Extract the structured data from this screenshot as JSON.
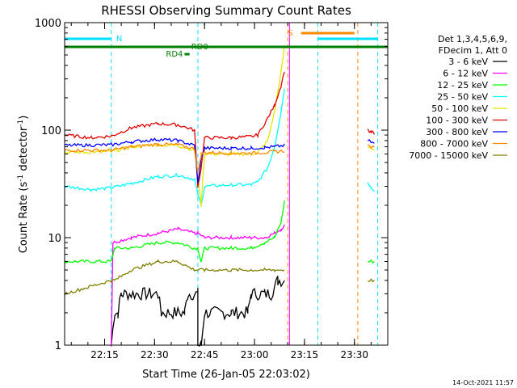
{
  "colors": {
    "background": "#ffffff",
    "axis": "#000000",
    "series": [
      "#000000",
      "#ff00ff",
      "#00ff00",
      "#00ffff",
      "#e6e600",
      "#e00000",
      "#0000ff",
      "#ff8800",
      "#808000"
    ],
    "ticks": {
      "night": "#00e0ff",
      "saa": "#ff8800"
    },
    "bars": {
      "night": "#00e0ff",
      "flag_rd": "#008000",
      "saa": "#ff8800"
    }
  },
  "chart_data": {
    "type": "line",
    "title": "RHESSI Observing Summary Count Rates",
    "xlabel": "Start Time (26-Jan-05 22:03:02)",
    "ylabel": "Count Rate (s",
    "ylabel_sup": "-1",
    "ylabel_tail": " detector",
    "ylabel_close": ")",
    "ylog": true,
    "ylim": [
      1,
      1000
    ],
    "xlim_minutes": [
      0,
      97
    ],
    "x_start": "22:03:02",
    "xticks": [
      {
        "label": "22:15",
        "min": 12
      },
      {
        "label": "22:30",
        "min": 27
      },
      {
        "label": "22:45",
        "min": 42
      },
      {
        "label": "23:00",
        "min": 57
      },
      {
        "label": "23:15",
        "min": 72
      },
      {
        "label": "23:30",
        "min": 87
      }
    ],
    "yticks": [
      {
        "label": "1",
        "value": 1
      },
      {
        "label": "10",
        "value": 10
      },
      {
        "label": "100",
        "value": 100
      },
      {
        "label": "1000",
        "value": 1000
      }
    ],
    "legend": {
      "position": "right",
      "header": [
        "Det 1,3,4,5,6,9,",
        "FDecim 1, Att 0"
      ],
      "entries": [
        "3 - 6 keV",
        "6 - 12 keV",
        "12 - 25 keV",
        "25 - 50 keV",
        "50 - 100 keV",
        "100 - 300 keV",
        "300 - 800 keV",
        "800 - 7000 keV",
        "7000 - 15000 keV"
      ]
    },
    "flags": {
      "night_label": "N",
      "saa_label": "S",
      "rd0_label": "RD0",
      "rd4_label": "RD4",
      "night_intervals": [
        [
          -1,
          14
        ],
        [
          76,
          94
        ]
      ],
      "saa_intervals": [
        [
          71,
          87
        ]
      ],
      "night_lines": [
        0,
        14,
        40,
        76,
        94
      ],
      "saa_lines": [
        67,
        88
      ],
      "att_lines": [
        67.5
      ]
    },
    "gaps": [
      [
        67,
        91
      ]
    ],
    "series": [
      {
        "name": "3 - 6 keV",
        "segments": [
          [
            [
              14,
              1
            ],
            [
              15,
              2
            ],
            [
              16,
              2
            ],
            [
              17,
              3
            ],
            [
              28,
              3
            ],
            [
              29,
              2
            ],
            [
              36,
              2
            ],
            [
              37,
              3
            ],
            [
              40,
              3
            ],
            [
              40,
              1
            ],
            [
              41,
              1
            ],
            [
              42,
              2
            ],
            [
              50,
              2
            ],
            [
              55,
              2
            ],
            [
              56,
              3
            ],
            [
              60,
              3
            ],
            [
              62,
              3
            ],
            [
              64,
              4
            ],
            [
              66,
              4
            ]
          ]
        ]
      },
      {
        "name": "6 - 12 keV",
        "segments": [
          [
            [
              14,
              1
            ],
            [
              14.5,
              9
            ],
            [
              20,
              10
            ],
            [
              28,
              11
            ],
            [
              34,
              12
            ],
            [
              39,
              11
            ],
            [
              40,
              11
            ],
            [
              42,
              10
            ],
            [
              50,
              10
            ],
            [
              56,
              10
            ],
            [
              60,
              10
            ],
            [
              63,
              11
            ],
            [
              65,
              12
            ],
            [
              66,
              13
            ]
          ]
        ]
      },
      {
        "name": "12 - 25 keV",
        "segments": [
          [
            [
              0,
              6
            ],
            [
              14,
              6
            ],
            [
              15,
              8
            ],
            [
              20,
              8
            ],
            [
              28,
              9
            ],
            [
              34,
              9
            ],
            [
              39,
              8
            ],
            [
              40,
              8
            ],
            [
              41,
              6
            ],
            [
              42,
              8
            ],
            [
              50,
              8
            ],
            [
              56,
              8
            ],
            [
              60,
              9
            ],
            [
              63,
              10
            ],
            [
              65,
              14
            ],
            [
              66,
              22
            ]
          ],
          [
            [
              91,
              6
            ],
            [
              93,
              6
            ]
          ]
        ]
      },
      {
        "name": "25 - 50 keV",
        "segments": [
          [
            [
              0,
              30
            ],
            [
              8,
              28
            ],
            [
              14,
              29
            ],
            [
              20,
              32
            ],
            [
              28,
              37
            ],
            [
              34,
              38
            ],
            [
              39,
              35
            ],
            [
              40,
              25
            ],
            [
              41,
              20
            ],
            [
              42,
              30
            ],
            [
              50,
              31
            ],
            [
              56,
              31
            ],
            [
              58,
              33
            ],
            [
              61,
              45
            ],
            [
              63,
              70
            ],
            [
              65,
              150
            ],
            [
              66,
              250
            ]
          ],
          [
            [
              91,
              32
            ],
            [
              92,
              30
            ],
            [
              93,
              27
            ]
          ]
        ]
      },
      {
        "name": "50 - 100 keV",
        "segments": [
          [
            [
              0,
              62
            ],
            [
              14,
              63
            ],
            [
              20,
              70
            ],
            [
              28,
              73
            ],
            [
              34,
              72
            ],
            [
              39,
              65
            ],
            [
              40,
              40
            ],
            [
              41,
              20
            ],
            [
              42,
              60
            ],
            [
              50,
              60
            ],
            [
              56,
              60
            ],
            [
              58,
              62
            ],
            [
              61,
              80
            ],
            [
              63,
              150
            ],
            [
              65,
              350
            ],
            [
              66,
              600
            ]
          ],
          [
            [
              91,
              70
            ],
            [
              93,
              66
            ]
          ]
        ]
      },
      {
        "name": "100 - 300 keV",
        "segments": [
          [
            [
              0,
              90
            ],
            [
              8,
              85
            ],
            [
              14,
              88
            ],
            [
              20,
              105
            ],
            [
              28,
              115
            ],
            [
              34,
              112
            ],
            [
              39,
              100
            ],
            [
              40,
              30
            ],
            [
              41,
              45
            ],
            [
              42,
              85
            ],
            [
              50,
              85
            ],
            [
              56,
              87
            ],
            [
              58,
              90
            ],
            [
              61,
              130
            ],
            [
              63,
              170
            ],
            [
              65,
              260
            ],
            [
              66,
              360
            ]
          ],
          [
            [
              91,
              100
            ],
            [
              92,
              97
            ],
            [
              93,
              92
            ]
          ]
        ]
      },
      {
        "name": "300 - 800 keV",
        "segments": [
          [
            [
              0,
              72
            ],
            [
              14,
              73
            ],
            [
              20,
              78
            ],
            [
              28,
              82
            ],
            [
              34,
              80
            ],
            [
              39,
              72
            ],
            [
              40,
              32
            ],
            [
              41,
              55
            ],
            [
              42,
              68
            ],
            [
              50,
              68
            ],
            [
              56,
              68
            ],
            [
              60,
              69
            ],
            [
              63,
              70
            ],
            [
              66,
              72
            ]
          ],
          [
            [
              91,
              80
            ],
            [
              93,
              75
            ]
          ]
        ]
      },
      {
        "name": "800 - 7000 keV",
        "segments": [
          [
            [
              0,
              65
            ],
            [
              14,
              65
            ],
            [
              20,
              70
            ],
            [
              28,
              74
            ],
            [
              34,
              73
            ],
            [
              39,
              67
            ],
            [
              40,
              40
            ],
            [
              41,
              60
            ],
            [
              42,
              62
            ],
            [
              50,
              61
            ],
            [
              56,
              61
            ],
            [
              60,
              62
            ],
            [
              63,
              63
            ],
            [
              66,
              64
            ]
          ],
          [
            [
              91,
              72
            ],
            [
              93,
              68
            ]
          ]
        ]
      },
      {
        "name": "7000 - 15000 keV",
        "segments": [
          [
            [
              0,
              3
            ],
            [
              14,
              4
            ],
            [
              15,
              4
            ],
            [
              20,
              5
            ],
            [
              28,
              6
            ],
            [
              34,
              6
            ],
            [
              39,
              5
            ],
            [
              40,
              5
            ],
            [
              42,
              5
            ],
            [
              50,
              5
            ],
            [
              56,
              5
            ],
            [
              60,
              5
            ],
            [
              63,
              5
            ],
            [
              66,
              5
            ]
          ],
          [
            [
              91,
              4
            ],
            [
              93,
              4
            ]
          ]
        ]
      }
    ],
    "timestamp": "14-Oct-2021 11:57"
  }
}
